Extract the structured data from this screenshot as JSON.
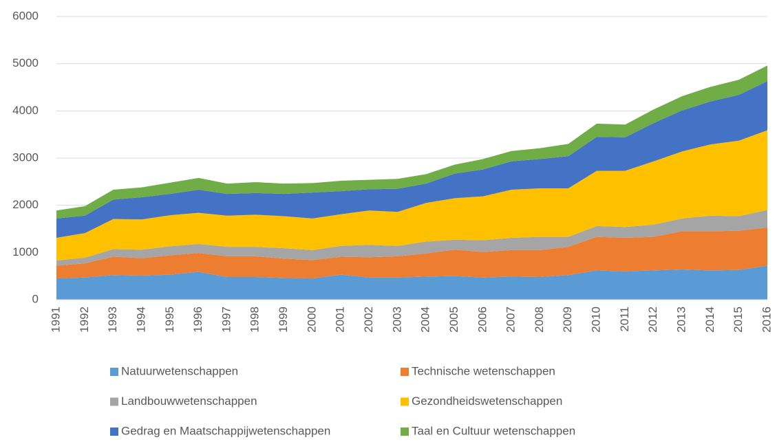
{
  "chart_data": {
    "type": "stacked_area",
    "x": [
      1991,
      1992,
      1993,
      1994,
      1995,
      1996,
      1997,
      1998,
      1999,
      2000,
      2001,
      2002,
      2003,
      2004,
      2005,
      2006,
      2007,
      2008,
      2009,
      2010,
      2011,
      2012,
      2013,
      2014,
      2015,
      2016
    ],
    "xlim": [
      1991,
      2016
    ],
    "ylim": [
      0,
      6000
    ],
    "yticks": [
      0,
      1000,
      2000,
      3000,
      4000,
      5000,
      6000
    ],
    "grid": true,
    "legend": "bottom",
    "series": [
      {
        "name": "Natuurwetenschappen",
        "color": "#5b9bd5",
        "values": [
          450,
          470,
          520,
          510,
          530,
          590,
          480,
          480,
          460,
          450,
          530,
          470,
          470,
          490,
          500,
          470,
          490,
          480,
          520,
          620,
          600,
          620,
          640,
          620,
          630,
          720
        ]
      },
      {
        "name": "Technische wetenschappen",
        "color": "#ed7d31",
        "values": [
          270,
          300,
          390,
          370,
          410,
          400,
          440,
          440,
          410,
          390,
          380,
          430,
          450,
          490,
          560,
          540,
          560,
          570,
          600,
          710,
          710,
          710,
          810,
          830,
          830,
          810
        ]
      },
      {
        "name": "Landbouwwetenschappen",
        "color": "#a5a5a5",
        "values": [
          110,
          120,
          160,
          180,
          190,
          190,
          200,
          200,
          220,
          210,
          230,
          260,
          220,
          250,
          210,
          250,
          260,
          280,
          210,
          230,
          230,
          260,
          270,
          330,
          310,
          370
        ]
      },
      {
        "name": "Gezondheidswetenschappen",
        "color": "#ffc000",
        "values": [
          480,
          520,
          640,
          640,
          660,
          660,
          660,
          680,
          680,
          670,
          670,
          730,
          720,
          820,
          880,
          930,
          1020,
          1030,
          1030,
          1170,
          1190,
          1340,
          1420,
          1510,
          1600,
          1690
        ]
      },
      {
        "name": "Gedrag en Maatschappijwetenschappen",
        "color": "#4472c4",
        "values": [
          410,
          370,
          410,
          470,
          450,
          490,
          460,
          460,
          470,
          550,
          490,
          450,
          490,
          410,
          520,
          570,
          600,
          620,
          680,
          720,
          710,
          810,
          870,
          910,
          970,
          1040
        ]
      },
      {
        "name": "Taal en Cultuur wetenschappen",
        "color": "#70ad47",
        "values": [
          170,
          200,
          210,
          210,
          240,
          250,
          220,
          230,
          220,
          200,
          220,
          200,
          210,
          200,
          190,
          220,
          220,
          230,
          260,
          280,
          270,
          290,
          300,
          310,
          320,
          330
        ]
      }
    ]
  }
}
